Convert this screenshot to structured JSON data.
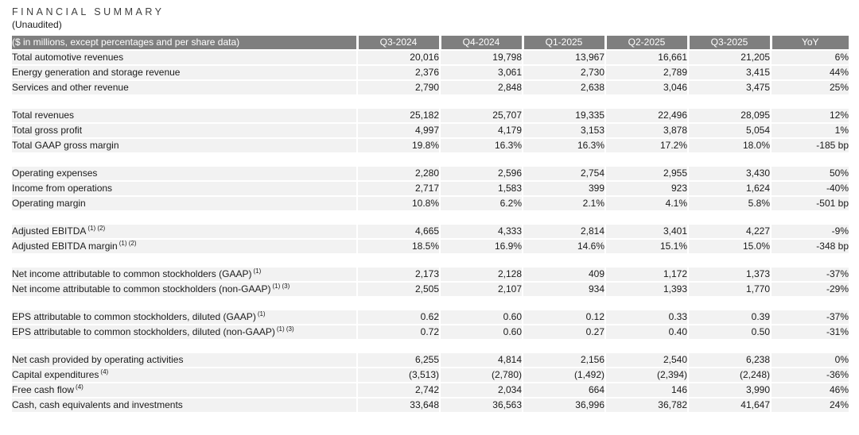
{
  "title": "FINANCIAL SUMMARY",
  "subtitle": "(Unaudited)",
  "colors": {
    "header_bg": "#7f7f7f",
    "header_text": "#ffffff",
    "row_bg": "#f2f2f2",
    "highlight_bg": "#f2dddc",
    "text": "#1a1a1a",
    "title_text": "#404040"
  },
  "table": {
    "header_label": "($ in millions, except percentages and per share data)",
    "columns": [
      "Q3-2024",
      "Q4-2024",
      "Q1-2025",
      "Q2-2025",
      "Q3-2025",
      "YoY"
    ],
    "highlight_column": "Q3-2025",
    "sections": [
      {
        "rows": [
          {
            "label": "Total automotive revenues",
            "sup": "",
            "values": [
              "20,016",
              "19,798",
              "13,967",
              "16,661",
              "21,205",
              "6%"
            ]
          },
          {
            "label": "Energy generation and storage revenue",
            "sup": "",
            "values": [
              "2,376",
              "3,061",
              "2,730",
              "2,789",
              "3,415",
              "44%"
            ]
          },
          {
            "label": "Services and other revenue",
            "sup": "",
            "values": [
              "2,790",
              "2,848",
              "2,638",
              "3,046",
              "3,475",
              "25%"
            ]
          }
        ]
      },
      {
        "rows": [
          {
            "label": "Total revenues",
            "sup": "",
            "values": [
              "25,182",
              "25,707",
              "19,335",
              "22,496",
              "28,095",
              "12%"
            ]
          },
          {
            "label": "Total gross profit",
            "sup": "",
            "values": [
              "4,997",
              "4,179",
              "3,153",
              "3,878",
              "5,054",
              "1%"
            ]
          },
          {
            "label": "Total GAAP gross margin",
            "sup": "",
            "values": [
              "19.8%",
              "16.3%",
              "16.3%",
              "17.2%",
              "18.0%",
              "-185 bp"
            ]
          }
        ]
      },
      {
        "rows": [
          {
            "label": "Operating expenses",
            "sup": "",
            "values": [
              "2,280",
              "2,596",
              "2,754",
              "2,955",
              "3,430",
              "50%"
            ]
          },
          {
            "label": "Income from operations",
            "sup": "",
            "values": [
              "2,717",
              "1,583",
              "399",
              "923",
              "1,624",
              "-40%"
            ]
          },
          {
            "label": "Operating margin",
            "sup": "",
            "values": [
              "10.8%",
              "6.2%",
              "2.1%",
              "4.1%",
              "5.8%",
              "-501 bp"
            ]
          }
        ]
      },
      {
        "rows": [
          {
            "label": "Adjusted EBITDA",
            "sup": "(1) (2)",
            "values": [
              "4,665",
              "4,333",
              "2,814",
              "3,401",
              "4,227",
              "-9%"
            ]
          },
          {
            "label": "Adjusted EBITDA margin",
            "sup": "(1) (2)",
            "values": [
              "18.5%",
              "16.9%",
              "14.6%",
              "15.1%",
              "15.0%",
              "-348 bp"
            ]
          }
        ]
      },
      {
        "rows": [
          {
            "label": "Net income attributable to common stockholders (GAAP)",
            "sup": "(1)",
            "values": [
              "2,173",
              "2,128",
              "409",
              "1,172",
              "1,373",
              "-37%"
            ]
          },
          {
            "label": "Net income attributable to common stockholders (non-GAAP)",
            "sup": "(1) (3)",
            "values": [
              "2,505",
              "2,107",
              "934",
              "1,393",
              "1,770",
              "-29%"
            ]
          }
        ]
      },
      {
        "rows": [
          {
            "label": "EPS attributable to common stockholders, diluted (GAAP)",
            "sup": "(1)",
            "values": [
              "0.62",
              "0.60",
              "0.12",
              "0.33",
              "0.39",
              "-37%"
            ]
          },
          {
            "label": "EPS attributable to common stockholders, diluted (non-GAAP)",
            "sup": "(1) (3)",
            "values": [
              "0.72",
              "0.60",
              "0.27",
              "0.40",
              "0.50",
              "-31%"
            ]
          }
        ]
      },
      {
        "rows": [
          {
            "label": "Net cash provided by operating activities",
            "sup": "",
            "values": [
              "6,255",
              "4,814",
              "2,156",
              "2,540",
              "6,238",
              "0%"
            ]
          },
          {
            "label": "Capital expenditures",
            "sup": "(4)",
            "values": [
              "(3,513)",
              "(2,780)",
              "(1,492)",
              "(2,394)",
              "(2,248)",
              "-36%"
            ]
          },
          {
            "label": "Free cash flow",
            "sup": "(4)",
            "values": [
              "2,742",
              "2,034",
              "664",
              "146",
              "3,990",
              "46%"
            ]
          },
          {
            "label": "Cash, cash equivalents and investments",
            "sup": "",
            "values": [
              "33,648",
              "36,563",
              "36,996",
              "36,782",
              "41,647",
              "24%"
            ]
          }
        ]
      }
    ]
  }
}
